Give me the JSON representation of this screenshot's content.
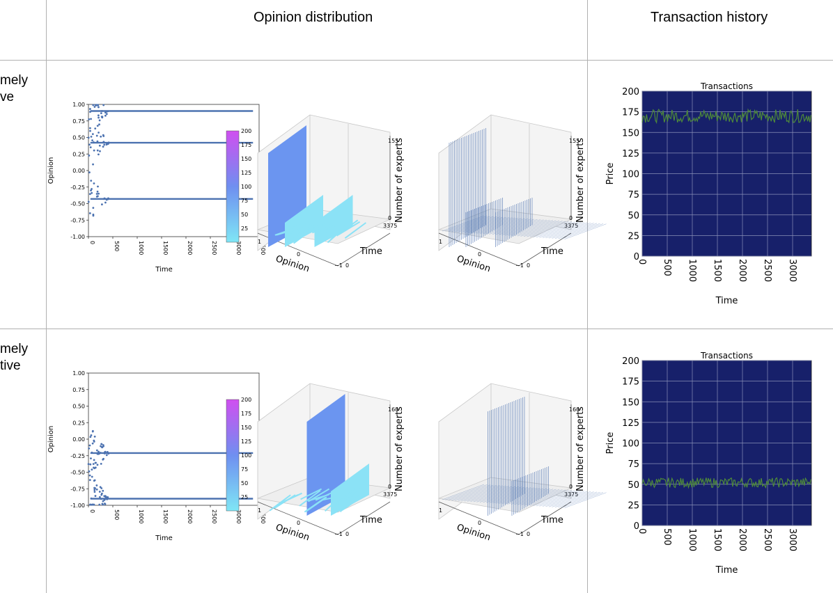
{
  "headers": {
    "opinion": "Opinion distribution",
    "transactions": "Transaction history"
  },
  "rows": [
    {
      "label_line1": "mely",
      "label_line2": "ve"
    },
    {
      "label_line1": "mely",
      "label_line2": "tive"
    }
  ],
  "colorbar": {
    "ticks": [
      "200",
      "175",
      "150",
      "125",
      "100",
      "75",
      "50",
      "25"
    ],
    "low_color": "#7fe6f5",
    "high_color": "#d04ff0"
  },
  "chart_data": [
    {
      "type": "scatter",
      "title": "",
      "xlabel": "Time",
      "ylabel": "Opinion",
      "xlim": [
        0,
        3500
      ],
      "ylim": [
        -1.0,
        1.0
      ],
      "xticks": [
        "0",
        "500",
        "1000",
        "1500",
        "2000",
        "2500",
        "3000",
        "3500"
      ],
      "yticks": [
        "1.00",
        "0.75",
        "0.50",
        "0.25",
        "0.00",
        "-0.25",
        "-0.50",
        "-0.75",
        "-1.00"
      ],
      "clusters": [
        0.9,
        0.42,
        -0.43
      ],
      "color": "#4c72b0"
    },
    {
      "type": "area",
      "style": "3d-surface",
      "xlabel": "Opinion",
      "ylabel": "Time",
      "zlabel": "Number of experts",
      "opinion_ticks": [
        "1",
        "0",
        "−1"
      ],
      "time_ticks": [
        "0",
        "3375"
      ],
      "z_ticks": [
        "0",
        "155"
      ],
      "peaks_opinion": [
        0.9,
        0.42,
        -0.43
      ]
    },
    {
      "type": "area",
      "style": "3d-wireframe",
      "xlabel": "Opinion",
      "ylabel": "Time",
      "zlabel": "Number of experts",
      "opinion_ticks": [
        "1",
        "0",
        "−1"
      ],
      "time_ticks": [
        "0",
        "3375"
      ],
      "z_ticks": [
        "0",
        "155"
      ]
    },
    {
      "type": "line",
      "title": "Transactions",
      "xlabel": "Time",
      "ylabel": "Price",
      "xlim": [
        0,
        3375
      ],
      "ylim": [
        0,
        200
      ],
      "xticks": [
        "0",
        "500",
        "1000",
        "1500",
        "2000",
        "2500",
        "3000"
      ],
      "yticks": [
        "0",
        "25",
        "50",
        "75",
        "100",
        "125",
        "150",
        "175",
        "200"
      ],
      "mean": 170,
      "spread": 8,
      "bg": "#17206a",
      "line_color": "#4e8a3a"
    },
    {
      "type": "scatter",
      "title": "",
      "xlabel": "Time",
      "ylabel": "Opinion",
      "xlim": [
        0,
        3500
      ],
      "ylim": [
        -1.0,
        1.0
      ],
      "xticks": [
        "0",
        "500",
        "1000",
        "1500",
        "2000",
        "2500",
        "3000",
        "3500"
      ],
      "yticks": [
        "1.00",
        "0.75",
        "0.50",
        "0.25",
        "0.00",
        "-0.25",
        "-0.50",
        "-0.75",
        "-1.00"
      ],
      "clusters": [
        -0.21,
        -0.9
      ],
      "color": "#4c72b0"
    },
    {
      "type": "area",
      "style": "3d-surface",
      "xlabel": "Opinion",
      "ylabel": "Time",
      "zlabel": "Number of experts",
      "opinion_ticks": [
        "1",
        "0",
        "−1"
      ],
      "time_ticks": [
        "0",
        "3375"
      ],
      "z_ticks": [
        "0",
        "160"
      ],
      "peaks_opinion": [
        -0.21,
        -0.9
      ]
    },
    {
      "type": "area",
      "style": "3d-wireframe",
      "xlabel": "Opinion",
      "ylabel": "Time",
      "zlabel": "Number of experts",
      "opinion_ticks": [
        "1",
        "0",
        "−1"
      ],
      "time_ticks": [
        "0",
        "3375"
      ],
      "z_ticks": [
        "0",
        "160"
      ]
    },
    {
      "type": "line",
      "title": "Transactions",
      "xlabel": "Time",
      "ylabel": "Price",
      "xlim": [
        0,
        3375
      ],
      "ylim": [
        0,
        200
      ],
      "xticks": [
        "0",
        "500",
        "1000",
        "1500",
        "2000",
        "2500",
        "3000"
      ],
      "yticks": [
        "0",
        "25",
        "50",
        "75",
        "100",
        "125",
        "150",
        "175",
        "200"
      ],
      "mean": 52,
      "spread": 6,
      "bg": "#17206a",
      "line_color": "#4e8a3a"
    }
  ]
}
